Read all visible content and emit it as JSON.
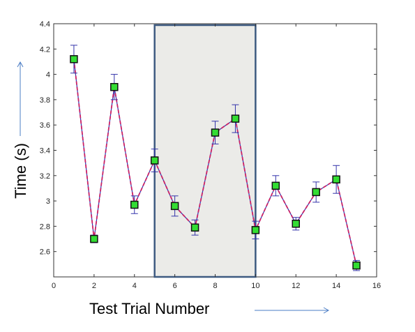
{
  "chart_data": {
    "type": "line",
    "title": "",
    "xlabel": "Test Trial Number",
    "ylabel": "Time (s)",
    "xlim": [
      0,
      16
    ],
    "ylim": [
      2.4,
      4.4
    ],
    "xticks": [
      0,
      2,
      4,
      6,
      8,
      10,
      12,
      14,
      16
    ],
    "yticks": [
      2.6,
      2.8,
      3.0,
      3.2,
      3.4,
      3.6,
      3.8,
      4.0,
      4.2,
      4.4
    ],
    "xtick_labels": [
      "0",
      "2",
      "4",
      "6",
      "8",
      "10",
      "12",
      "14",
      "16"
    ],
    "ytick_labels": [
      "2.6",
      "2.8",
      "3",
      "3.2",
      "3.4",
      "3.6",
      "3.8",
      "4",
      "4.2",
      "4.4"
    ],
    "grid": false,
    "highlight_region": {
      "x_start": 5,
      "x_end": 10,
      "fill": "#ebebe8",
      "stroke": "#3d5a80"
    },
    "series": [
      {
        "x": [
          1,
          2,
          3,
          4,
          5,
          6,
          7,
          8,
          9,
          10,
          11,
          12,
          13,
          14,
          15
        ],
        "y": [
          4.12,
          2.7,
          3.9,
          2.97,
          3.32,
          2.96,
          2.79,
          3.54,
          3.65,
          2.77,
          3.12,
          2.82,
          3.07,
          3.17,
          2.49
        ],
        "err": [
          0.11,
          0.03,
          0.1,
          0.07,
          0.09,
          0.08,
          0.06,
          0.09,
          0.11,
          0.07,
          0.08,
          0.05,
          0.08,
          0.11,
          0.04
        ],
        "marker": "square",
        "marker_color": "#33dd33",
        "line_color": "#3333aa",
        "dash_color": "#cc2266"
      }
    ],
    "colors": {
      "axis": "#333333",
      "arrow": "#4a7cc4"
    }
  }
}
